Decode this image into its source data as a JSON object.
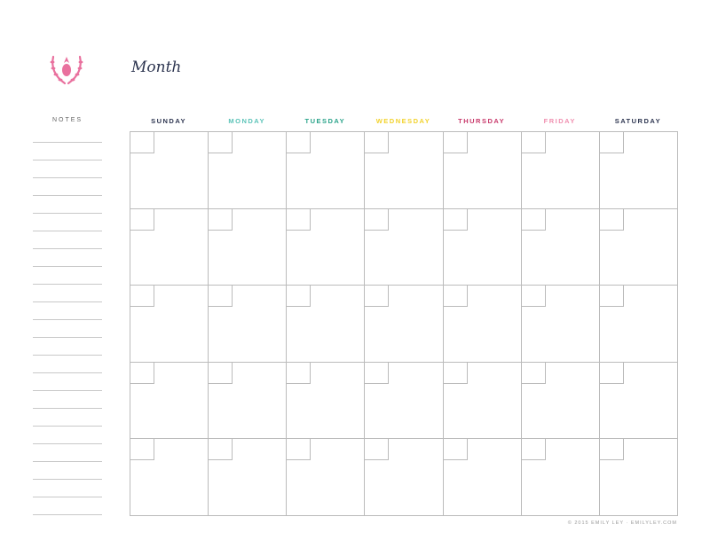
{
  "header": {
    "title": "Month",
    "logo_icon": "pineapple-laurel-icon",
    "logo_color": "#e9719e"
  },
  "notes": {
    "label": "NOTES",
    "line_count": 22
  },
  "days": [
    {
      "label": "SUNDAY",
      "color": "#2d3550"
    },
    {
      "label": "MONDAY",
      "color": "#5bc3b8"
    },
    {
      "label": "TUESDAY",
      "color": "#2aa38a"
    },
    {
      "label": "WEDNESDAY",
      "color": "#f2d22c"
    },
    {
      "label": "THURSDAY",
      "color": "#c8386a"
    },
    {
      "label": "FRIDAY",
      "color": "#f08fb0"
    },
    {
      "label": "SATURDAY",
      "color": "#2d3550"
    }
  ],
  "grid": {
    "weeks": 5
  },
  "footer": {
    "copyright": "© 2015 EMILY LEY · EMILYLEY.COM"
  }
}
